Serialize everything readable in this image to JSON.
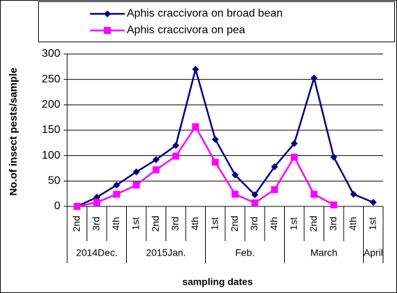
{
  "chart_data": {
    "type": "line",
    "y_label": "No.of insect pests/sample",
    "x_label": "sampling dates",
    "categories": [
      "2nd",
      "3rd",
      "4th",
      "1st",
      "2nd",
      "3rd",
      "4th",
      "1st",
      "2nd",
      "3rd",
      "4th",
      "1st",
      "2nd",
      "3rd",
      "4th",
      "1st"
    ],
    "groups": [
      {
        "label": "2014Dec.",
        "count": 3
      },
      {
        "label": "2015Jan.",
        "count": 4
      },
      {
        "label": "Feb.",
        "count": 4
      },
      {
        "label": "March",
        "count": 4
      },
      {
        "label": "April",
        "count": 1
      }
    ],
    "series": [
      {
        "name": "Aphis craccivora on broad bean",
        "color": "#000080",
        "marker": "diamond",
        "values": [
          0,
          18,
          42,
          68,
          92,
          120,
          270,
          132,
          62,
          23,
          78,
          124,
          253,
          97,
          24,
          8
        ]
      },
      {
        "name": "Aphis craccivora on pea",
        "color": "#ff00ff",
        "marker": "square",
        "values": [
          0,
          8,
          24,
          42,
          72,
          99,
          157,
          87,
          24,
          7,
          33,
          97,
          24,
          3,
          null,
          null
        ]
      }
    ],
    "ylim": [
      0,
      300
    ],
    "yticks": [
      0,
      50,
      100,
      150,
      200,
      250,
      300
    ],
    "grid": true
  }
}
